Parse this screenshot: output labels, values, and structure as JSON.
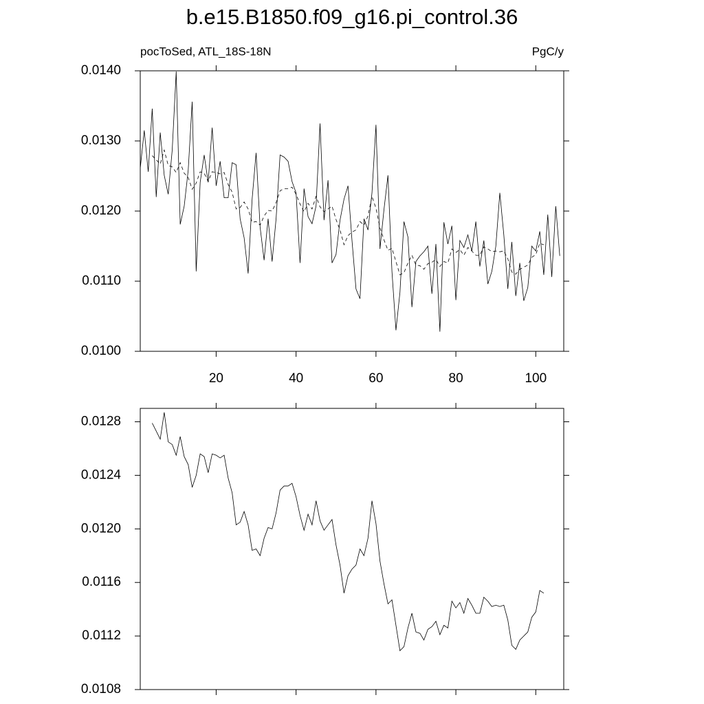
{
  "chart_data": [
    {
      "type": "line",
      "title": "b.e15.B1850.f09_g16.pi_control.36",
      "subtitle_left": "pocToSed, ATL_18S-18N",
      "subtitle_right": "PgC/y",
      "xlim": [
        1,
        107
      ],
      "xticks": [
        20,
        40,
        60,
        80,
        100
      ],
      "ylim": [
        0.01,
        0.014
      ],
      "yticks": [
        {
          "value": 0.01,
          "label": "0.0100"
        },
        {
          "value": 0.011,
          "label": "0.0110"
        },
        {
          "value": 0.012,
          "label": "0.0120"
        },
        {
          "value": 0.013,
          "label": "0.0130"
        },
        {
          "value": 0.014,
          "label": "0.0140"
        }
      ],
      "series": [
        {
          "color": "#000000",
          "line_style": "solid",
          "x": [
            1,
            2,
            3,
            4,
            5,
            6,
            7,
            8,
            9,
            10,
            11,
            12,
            13,
            14,
            15,
            16,
            17,
            18,
            19,
            20,
            21,
            22,
            23,
            24,
            25,
            26,
            27,
            28,
            29,
            30,
            31,
            32,
            33,
            34,
            35,
            36,
            37,
            38,
            39,
            40,
            41,
            42,
            43,
            44,
            45,
            46,
            47,
            48,
            49,
            50,
            51,
            52,
            53,
            54,
            55,
            56,
            57,
            58,
            59,
            60,
            61,
            62,
            63,
            64,
            65,
            66,
            67,
            68,
            69,
            70,
            71,
            72,
            73,
            74,
            75,
            76,
            77,
            78,
            79,
            80,
            81,
            82,
            83,
            84,
            85,
            86,
            87,
            88,
            89,
            90,
            91,
            92,
            93,
            94,
            95,
            96,
            97,
            98,
            99,
            100,
            101,
            102,
            103,
            104,
            105,
            106
          ],
          "values": [
            0.01261,
            0.01315,
            0.01256,
            0.01346,
            0.0122,
            0.01312,
            0.01251,
            0.01224,
            0.01287,
            0.01399,
            0.01181,
            0.01207,
            0.01258,
            0.01356,
            0.01114,
            0.01241,
            0.0128,
            0.01241,
            0.01319,
            0.01236,
            0.01271,
            0.01219,
            0.01219,
            0.01269,
            0.01266,
            0.01189,
            0.01162,
            0.01111,
            0.01217,
            0.01283,
            0.01177,
            0.0113,
            0.01189,
            0.01128,
            0.01189,
            0.0128,
            0.01277,
            0.01271,
            0.01242,
            0.01226,
            0.01126,
            0.01232,
            0.01192,
            0.01182,
            0.01207,
            0.01325,
            0.01187,
            0.01244,
            0.01126,
            0.01138,
            0.01187,
            0.01217,
            0.01236,
            0.01158,
            0.01089,
            0.01075,
            0.01189,
            0.01173,
            0.01226,
            0.01323,
            0.01146,
            0.01202,
            0.01251,
            0.01114,
            0.0103,
            0.01084,
            0.01185,
            0.01163,
            0.01063,
            0.01128,
            0.01136,
            0.01142,
            0.0115,
            0.01082,
            0.01153,
            0.01028,
            0.01184,
            0.01153,
            0.01179,
            0.01073,
            0.01158,
            0.01148,
            0.01166,
            0.01143,
            0.01185,
            0.01121,
            0.01158,
            0.01096,
            0.01114,
            0.0115,
            0.01226,
            0.01166,
            0.01089,
            0.01156,
            0.01079,
            0.01126,
            0.01072,
            0.01091,
            0.0115,
            0.01143,
            0.01171,
            0.01109,
            0.01195,
            0.01106,
            0.01207,
            0.01136
          ]
        },
        {
          "color": "#000000",
          "line_style": "dashed",
          "x": [
            4,
            5,
            6,
            7,
            8,
            9,
            10,
            11,
            12,
            13,
            14,
            15,
            16,
            17,
            18,
            19,
            20,
            21,
            22,
            23,
            24,
            25,
            26,
            27,
            28,
            29,
            30,
            31,
            32,
            33,
            34,
            35,
            36,
            37,
            38,
            39,
            40,
            41,
            42,
            43,
            44,
            45,
            46,
            47,
            48,
            49,
            50,
            51,
            52,
            53,
            54,
            55,
            56,
            57,
            58,
            59,
            60,
            61,
            62,
            63,
            64,
            65,
            66,
            67,
            68,
            69,
            70,
            71,
            72,
            73,
            74,
            75,
            76,
            77,
            78,
            79,
            80,
            81,
            82,
            83,
            84,
            85,
            86,
            87,
            88,
            89,
            90,
            91,
            92,
            93,
            94,
            95,
            96,
            97,
            98,
            99,
            100,
            101,
            102
          ],
          "values": [
            0.01279,
            0.01273,
            0.01267,
            0.01287,
            0.01265,
            0.01263,
            0.01255,
            0.01269,
            0.01254,
            0.01248,
            0.01231,
            0.0124,
            0.01256,
            0.01254,
            0.01242,
            0.01256,
            0.01255,
            0.01253,
            0.01255,
            0.01238,
            0.01227,
            0.01203,
            0.01205,
            0.01213,
            0.01203,
            0.01184,
            0.01185,
            0.0118,
            0.01193,
            0.01201,
            0.012,
            0.01212,
            0.01229,
            0.01232,
            0.01232,
            0.01234,
            0.01224,
            0.0121,
            0.01199,
            0.01211,
            0.01203,
            0.01221,
            0.01206,
            0.01199,
            0.01203,
            0.01207,
            0.01188,
            0.01173,
            0.01152,
            0.01165,
            0.0117,
            0.01173,
            0.01185,
            0.0118,
            0.01193,
            0.01221,
            0.01204,
            0.01176,
            0.01159,
            0.01144,
            0.01147,
            0.01128,
            0.01109,
            0.01112,
            0.01126,
            0.01137,
            0.01123,
            0.01122,
            0.01117,
            0.01125,
            0.01127,
            0.01131,
            0.01121,
            0.01128,
            0.01126,
            0.01146,
            0.01141,
            0.01145,
            0.01137,
            0.01148,
            0.01143,
            0.01137,
            0.01137,
            0.01149,
            0.01146,
            0.01142,
            0.01143,
            0.01142,
            0.01143,
            0.01132,
            0.01113,
            0.0111,
            0.01117,
            0.0112,
            0.01123,
            0.01134,
            0.01138,
            0.01154,
            0.01152
          ]
        }
      ]
    },
    {
      "type": "line",
      "xlim": [
        1,
        107
      ],
      "xticks": [
        20,
        40,
        60,
        80,
        100
      ],
      "ylim": [
        0.0108,
        0.0129
      ],
      "yticks": [
        {
          "value": 0.0108,
          "label": "0.0108"
        },
        {
          "value": 0.0112,
          "label": "0.0112"
        },
        {
          "value": 0.0116,
          "label": "0.0116"
        },
        {
          "value": 0.012,
          "label": "0.0120"
        },
        {
          "value": 0.0124,
          "label": "0.0124"
        },
        {
          "value": 0.0128,
          "label": "0.0128"
        }
      ],
      "series": [
        {
          "color": "#000000",
          "line_style": "solid",
          "x": [
            4,
            5,
            6,
            7,
            8,
            9,
            10,
            11,
            12,
            13,
            14,
            15,
            16,
            17,
            18,
            19,
            20,
            21,
            22,
            23,
            24,
            25,
            26,
            27,
            28,
            29,
            30,
            31,
            32,
            33,
            34,
            35,
            36,
            37,
            38,
            39,
            40,
            41,
            42,
            43,
            44,
            45,
            46,
            47,
            48,
            49,
            50,
            51,
            52,
            53,
            54,
            55,
            56,
            57,
            58,
            59,
            60,
            61,
            62,
            63,
            64,
            65,
            66,
            67,
            68,
            69,
            70,
            71,
            72,
            73,
            74,
            75,
            76,
            77,
            78,
            79,
            80,
            81,
            82,
            83,
            84,
            85,
            86,
            87,
            88,
            89,
            90,
            91,
            92,
            93,
            94,
            95,
            96,
            97,
            98,
            99,
            100,
            101,
            102
          ],
          "values": [
            0.01279,
            0.01273,
            0.01267,
            0.01287,
            0.01265,
            0.01263,
            0.01255,
            0.01269,
            0.01254,
            0.01248,
            0.01231,
            0.0124,
            0.01256,
            0.01254,
            0.01242,
            0.01256,
            0.01255,
            0.01253,
            0.01255,
            0.01238,
            0.01227,
            0.01203,
            0.01205,
            0.01213,
            0.01203,
            0.01184,
            0.01185,
            0.0118,
            0.01193,
            0.01201,
            0.012,
            0.01212,
            0.01229,
            0.01232,
            0.01232,
            0.01234,
            0.01224,
            0.0121,
            0.01199,
            0.01211,
            0.01203,
            0.01221,
            0.01206,
            0.01199,
            0.01203,
            0.01207,
            0.01188,
            0.01173,
            0.01152,
            0.01165,
            0.0117,
            0.01173,
            0.01185,
            0.0118,
            0.01193,
            0.01221,
            0.01204,
            0.01176,
            0.01159,
            0.01144,
            0.01147,
            0.01128,
            0.01109,
            0.01112,
            0.01126,
            0.01137,
            0.01123,
            0.01122,
            0.01117,
            0.01125,
            0.01127,
            0.01131,
            0.01121,
            0.01128,
            0.01126,
            0.01146,
            0.01141,
            0.01145,
            0.01137,
            0.01148,
            0.01143,
            0.01137,
            0.01137,
            0.01149,
            0.01146,
            0.01142,
            0.01143,
            0.01142,
            0.01143,
            0.01132,
            0.01113,
            0.0111,
            0.01117,
            0.0112,
            0.01123,
            0.01134,
            0.01138,
            0.01154,
            0.01152
          ]
        }
      ]
    }
  ]
}
